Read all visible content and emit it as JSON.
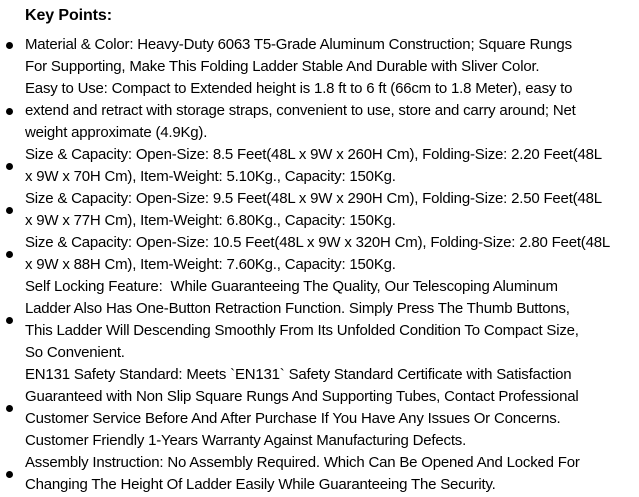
{
  "page": {
    "background_color": "#ffffff",
    "text_color": "#000000",
    "bullet_color": "#000000"
  },
  "document": {
    "heading": "Key Points:",
    "items": [
      {
        "lines": [
          "Material & Color: Heavy-Duty 6063 T5-Grade Aluminum Construction; Square Rungs",
          "For Supporting, Make This Folding Ladder Stable And Durable with Sliver Color."
        ]
      },
      {
        "lines": [
          "Easy to Use: Compact to Extended height is 1.8 ft to 6 ft (66cm to 1.8 Meter), easy to",
          "extend and retract with storage straps, convenient to use, store and carry around; Net",
          "weight approximate (4.9Kg)."
        ]
      },
      {
        "lines": [
          "Size & Capacity: Open-Size: 8.5 Feet(48L x 9W x 260H Cm), Folding-Size: 2.20 Feet(48L",
          "x 9W x 70H Cm), Item-Weight: 5.10Kg., Capacity: 150Kg."
        ]
      },
      {
        "lines": [
          "Size & Capacity: Open-Size: 9.5 Feet(48L x 9W x 290H Cm), Folding-Size: 2.50 Feet(48L",
          "x 9W x 77H Cm), Item-Weight: 6.80Kg., Capacity: 150Kg."
        ]
      },
      {
        "lines": [
          "Size & Capacity: Open-Size: 10.5 Feet(48L x 9W x 320H Cm), Folding-Size: 2.80 Feet(48L",
          "x 9W x 88H Cm), Item-Weight: 7.60Kg., Capacity: 150Kg."
        ]
      },
      {
        "lines": [
          "Self Locking Feature:  While Guaranteeing The Quality, Our Telescoping Aluminum",
          "Ladder Also Has One-Button Retraction Function. Simply Press The Thumb Buttons,",
          "This Ladder Will Descending Smoothly From Its Unfolded Condition To Compact Size,",
          "So Convenient."
        ]
      },
      {
        "lines": [
          "EN131 Safety Standard: Meets `EN131` Safety Standard Certificate with Satisfaction",
          "Guaranteed with Non Slip Square Rungs And Supporting Tubes, Contact Professional",
          "Customer Service Before And After Purchase If You Have Any Issues Or Concerns.",
          "Customer Friendly 1-Years Warranty Against Manufacturing Defects."
        ]
      },
      {
        "lines": [
          "Assembly Instruction: No Assembly Required. Which Can Be Opened And Locked For",
          "Changing The Height Of Ladder Easily While Guaranteeing The Security."
        ]
      }
    ]
  }
}
